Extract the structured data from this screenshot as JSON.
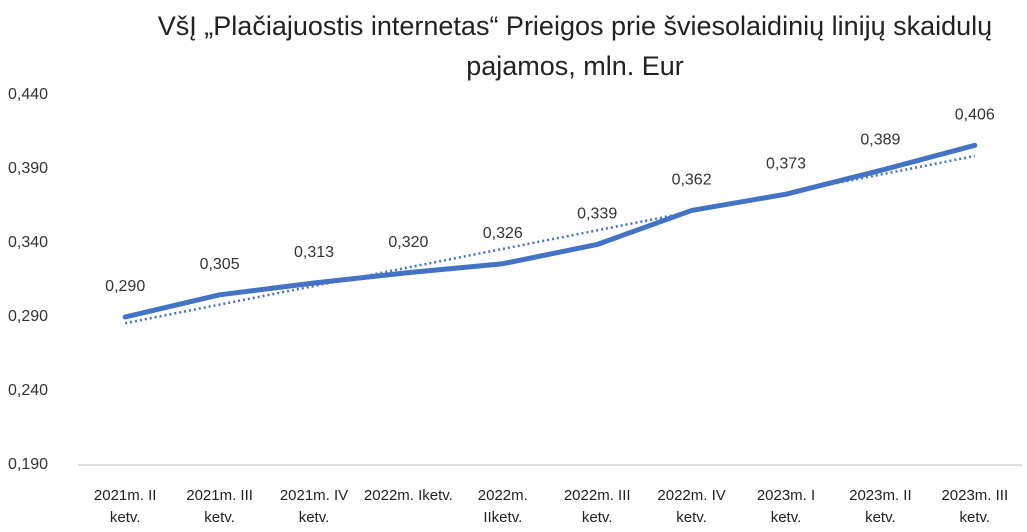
{
  "chart_data": {
    "type": "line",
    "title": "VšĮ „Plačiajuostis internetas“  Prieigos prie šviesolaidinių linijų skaidulų pajamos, mln. Eur",
    "categories": [
      "2021m. II ketv.",
      "2021m. III ketv.",
      "2021m. IV ketv.",
      "2022m. Iketv.",
      "2022m. IIketv.",
      "2022m. III ketv.",
      "2022m. IV ketv.",
      "2023m. I ketv.",
      "2023m. II ketv.",
      "2023m. III ketv."
    ],
    "values": [
      0.29,
      0.305,
      0.313,
      0.32,
      0.326,
      0.339,
      0.362,
      0.373,
      0.389,
      0.406
    ],
    "value_labels": [
      "0,290",
      "0,305",
      "0,313",
      "0,320",
      "0,326",
      "0,339",
      "0,362",
      "0,373",
      "0,389",
      "0,406"
    ],
    "color": "#4472c4",
    "trendline": "linear",
    "ylim": [
      0.19,
      0.44
    ],
    "yticks": [
      {
        "value": 0.19,
        "label": "0,190"
      },
      {
        "value": 0.24,
        "label": "0,240"
      },
      {
        "value": 0.29,
        "label": "0,290"
      },
      {
        "value": 0.34,
        "label": "0,340"
      },
      {
        "value": 0.39,
        "label": "0,390"
      },
      {
        "value": 0.44,
        "label": "0,440"
      }
    ],
    "grid": false
  }
}
